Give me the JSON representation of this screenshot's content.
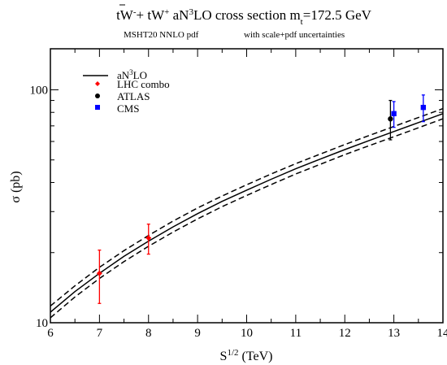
{
  "chart_data": {
    "type": "line",
    "title": {
      "process": "tW",
      "sup1": "-",
      "plus1": "+ ",
      "tbar": "t",
      "process2": "W",
      "sup2": "+",
      "mid": "  aN",
      "sup3": "3",
      "tail": "LO cross section    m",
      "sub": "t",
      "mass": "=172.5 GeV"
    },
    "subtitle_left": "MSHT20 NNLO pdf",
    "subtitle_right": "with scale+pdf uncertainties",
    "xlabel": {
      "base": "S",
      "sup": "1/2",
      "unit": " (TeV)"
    },
    "ylabel": "σ (pb)",
    "xlim": [
      6,
      14
    ],
    "ylim": [
      10,
      150
    ],
    "yscale": "log",
    "x_ticks": [
      "6",
      "7",
      "8",
      "9",
      "10",
      "11",
      "12",
      "13",
      "14"
    ],
    "y_ticks": [
      {
        "value": 10,
        "label": "10"
      },
      {
        "value": 100,
        "label": "100"
      }
    ],
    "legend": {
      "position": "top-left",
      "entries": [
        {
          "kind": "line",
          "base": "aN",
          "sup": "3",
          "tail": "LO",
          "color": "#000000"
        },
        {
          "kind": "marker",
          "marker": "diamond",
          "label": "LHC combo",
          "color": "#ff0000"
        },
        {
          "kind": "marker",
          "marker": "circle",
          "label": "ATLAS",
          "color": "#000000"
        },
        {
          "kind": "marker",
          "marker": "square",
          "label": "CMS",
          "color": "#0000ff"
        }
      ]
    },
    "series": [
      {
        "name": "aN3LO",
        "style": "solid",
        "color": "#000000",
        "x": [
          6,
          6.5,
          7,
          7.5,
          8,
          8.5,
          9,
          9.5,
          10,
          10.5,
          11,
          11.5,
          12,
          12.5,
          13,
          13.5,
          14
        ],
        "y": [
          11.1,
          13.6,
          16.3,
          19.3,
          22.4,
          25.8,
          29.4,
          33.2,
          37.1,
          41.3,
          45.8,
          50.4,
          55.4,
          60.6,
          66.2,
          72.3,
          79
        ]
      },
      {
        "style": "dashed",
        "color": "#000000",
        "x": [
          6,
          6.5,
          7,
          7.5,
          8,
          8.5,
          9,
          9.5,
          10,
          10.5,
          11,
          11.5,
          12,
          12.5,
          13,
          13.5,
          14
        ],
        "y": [
          11.8,
          14.4,
          17.3,
          20.4,
          23.7,
          27.3,
          31.1,
          35,
          39.1,
          43.5,
          48.2,
          53,
          58.2,
          63.7,
          69.6,
          76,
          83
        ]
      },
      {
        "style": "dashed",
        "color": "#000000",
        "x": [
          6,
          6.5,
          7,
          7.5,
          8,
          8.5,
          9,
          9.5,
          10,
          10.5,
          11,
          11.5,
          12,
          12.5,
          13,
          13.5,
          14
        ],
        "y": [
          10.5,
          12.9,
          15.5,
          18.3,
          21.3,
          24.5,
          27.9,
          31.5,
          35.2,
          39.2,
          43.5,
          47.9,
          52.7,
          57.6,
          62.9,
          68.7,
          75.1
        ]
      }
    ],
    "points": [
      {
        "label": "LHC combo",
        "marker": "diamond",
        "color": "#ff0000",
        "x": 7,
        "y": 16.3,
        "ylo": 12.1,
        "yhi": 20.5
      },
      {
        "label": "LHC combo",
        "marker": "diamond",
        "color": "#ff0000",
        "x": 8,
        "y": 23.1,
        "ylo": 19.7,
        "yhi": 26.5
      },
      {
        "label": "ATLAS",
        "marker": "circle",
        "color": "#000000",
        "x": 12.93,
        "y": 75,
        "ylo": 61,
        "yhi": 90
      },
      {
        "label": "CMS",
        "marker": "square",
        "color": "#0000ff",
        "x": 13,
        "y": 79,
        "ylo": 69,
        "yhi": 89
      },
      {
        "label": "CMS",
        "marker": "square",
        "color": "#0000ff",
        "x": 13.6,
        "y": 84,
        "ylo": 73,
        "yhi": 95
      }
    ]
  }
}
